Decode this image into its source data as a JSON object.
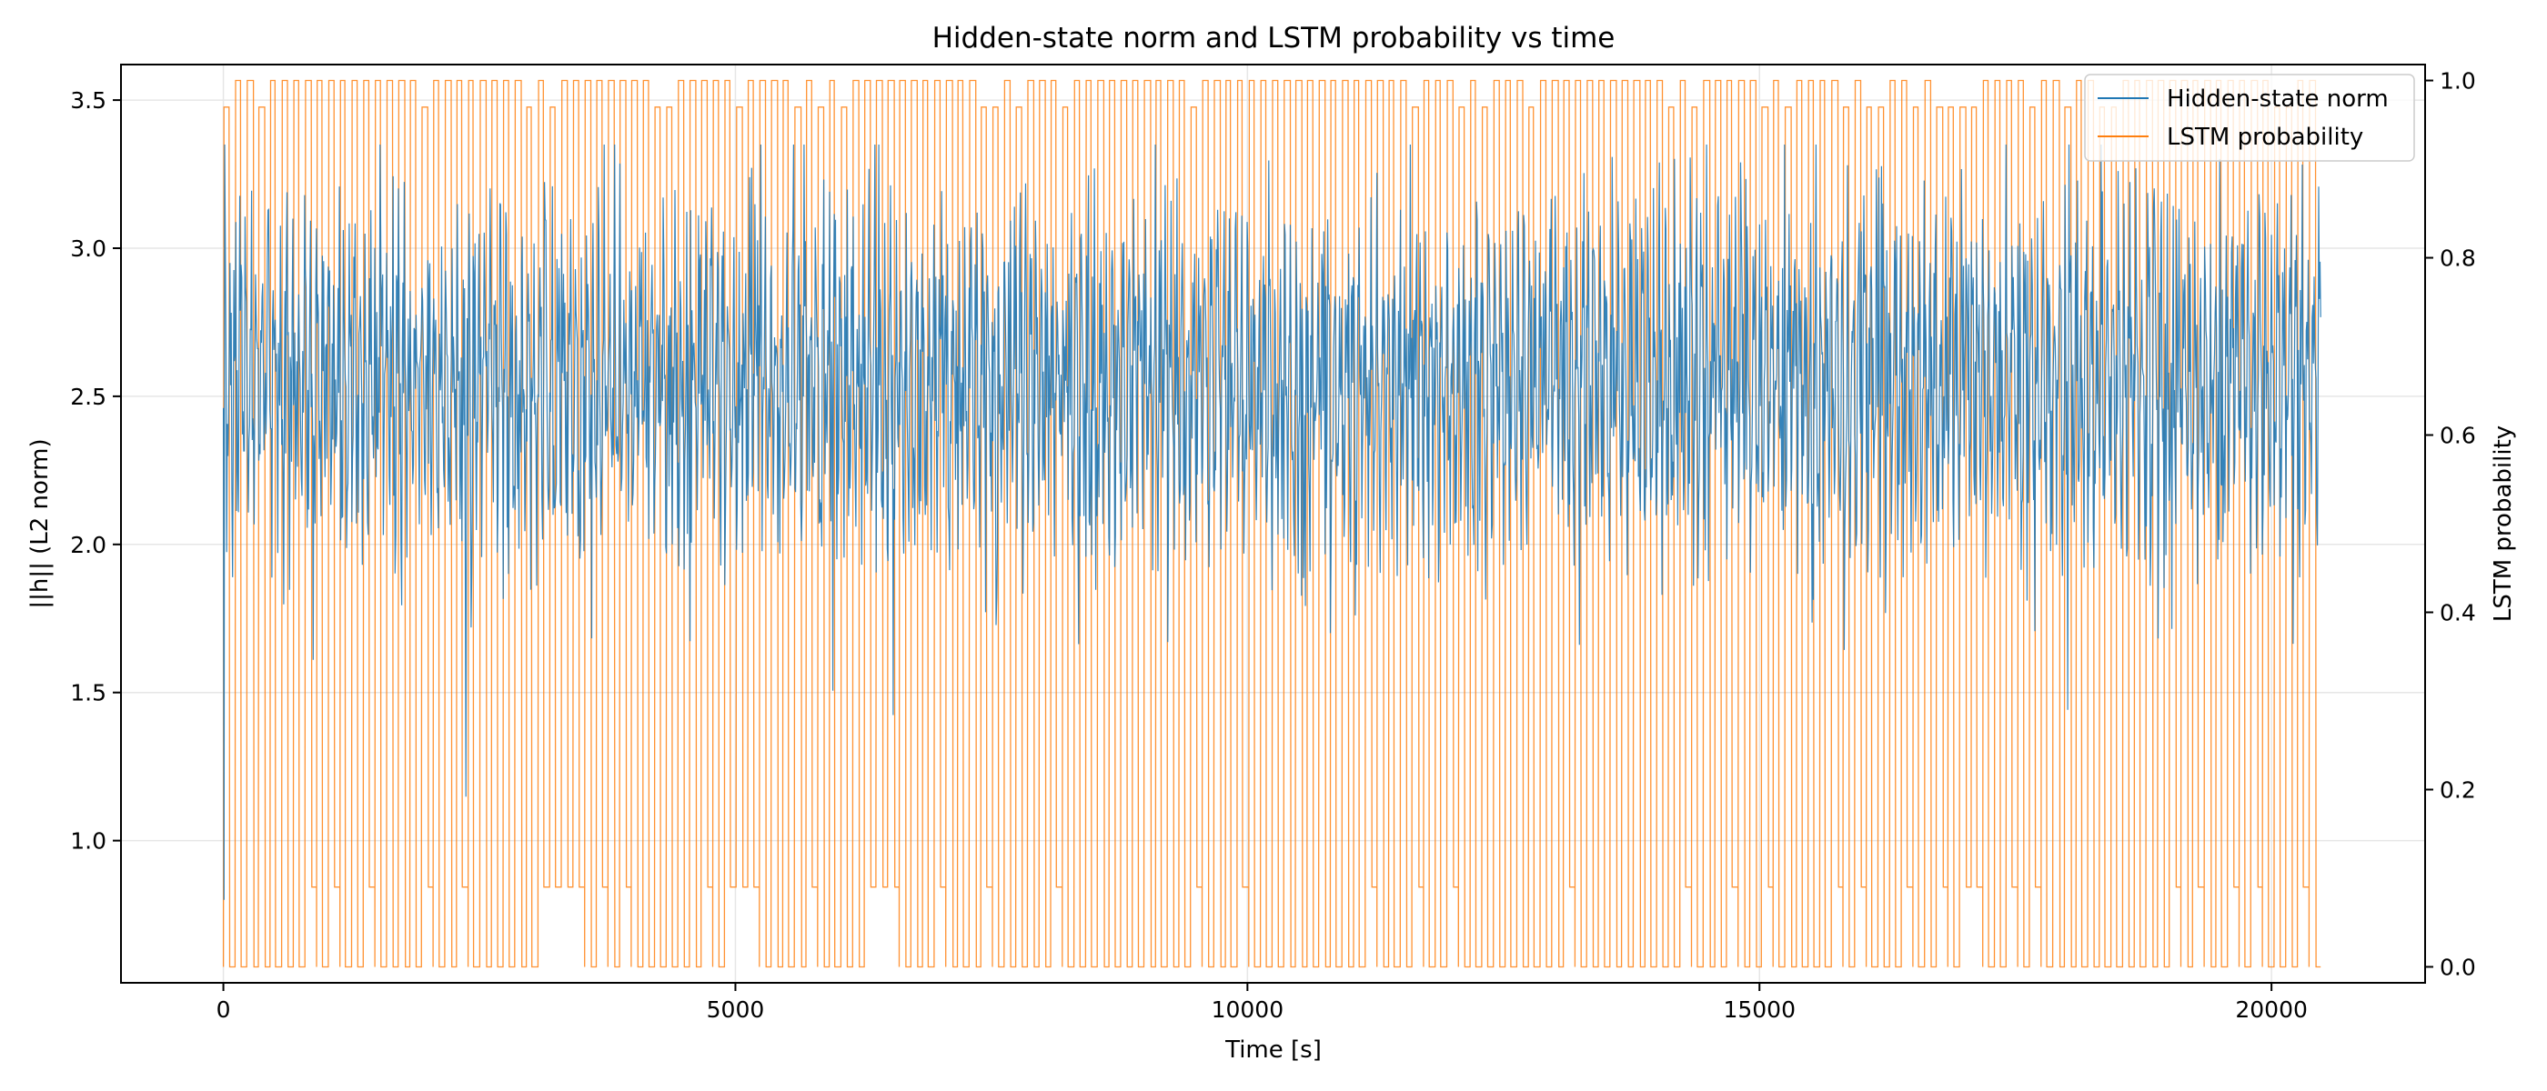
{
  "chart_data": {
    "type": "line",
    "title": "Hidden-state norm and LSTM probability vs time",
    "xlabel": "Time [s]",
    "ylabel": "||h|| (L2 norm)",
    "y2label": "LSTM probability",
    "xlim": [
      -1000,
      21500
    ],
    "ylim": [
      0.52,
      3.62
    ],
    "y2lim": [
      -0.018,
      1.018
    ],
    "xticks": [
      0,
      5000,
      10000,
      15000,
      20000
    ],
    "xtick_labels": [
      "0",
      "5000",
      "10000",
      "15000",
      "20000"
    ],
    "yticks": [
      1.0,
      1.5,
      2.0,
      2.5,
      3.0,
      3.5
    ],
    "ytick_labels": [
      "1.0",
      "1.5",
      "2.0",
      "2.5",
      "3.0",
      "3.5"
    ],
    "y2ticks": [
      0.0,
      0.2,
      0.4,
      0.6,
      0.8,
      1.0
    ],
    "y2tick_labels": [
      "0.0",
      "0.2",
      "0.4",
      "0.6",
      "0.8",
      "1.0"
    ],
    "grid": true,
    "legend_position": "top-right",
    "series": [
      {
        "name": "Hidden-state norm",
        "axis": "left",
        "color": "#1f77b4",
        "x_range": [
          0,
          20480
        ],
        "summary": "noisy oscillation centered near 2.55, mostly between 1.8 and 3.3, peaks near 3.35, dips near 0.8 at start",
        "mean": 2.55,
        "min": 0.8,
        "max": 3.35
      },
      {
        "name": "LSTM probability",
        "axis": "right",
        "color": "#ff7f0e",
        "x_range": [
          0,
          20480
        ],
        "summary": "rapid square-wave switching between ~0.0 and ~1.0, roughly 180 cycles over the time range; some lows at ~0.09 and highs at ~0.97",
        "low": 0.0,
        "high": 1.0,
        "cycles": 180
      }
    ]
  }
}
